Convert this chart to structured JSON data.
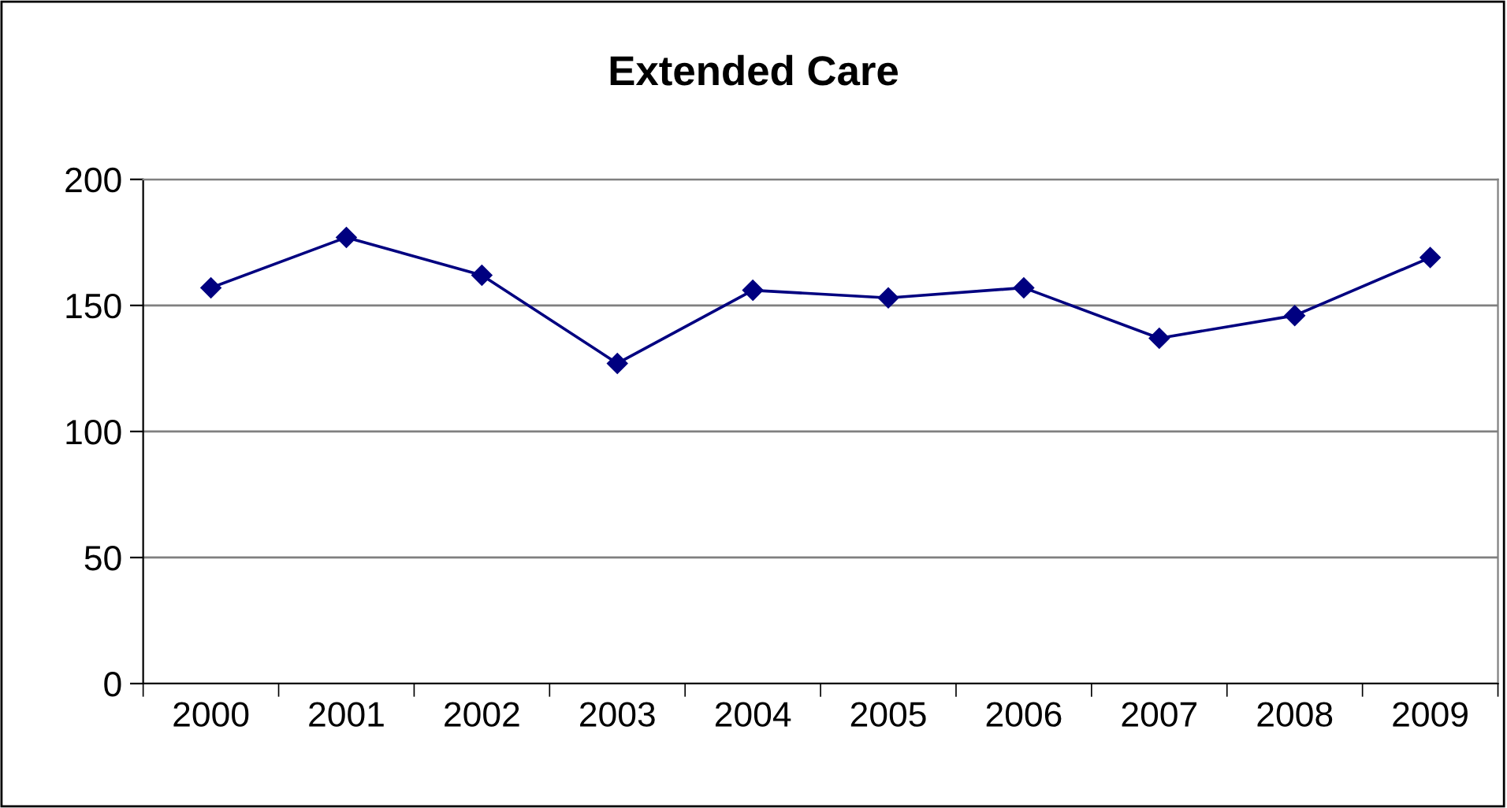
{
  "chart_data": {
    "type": "line",
    "title": "Extended Care",
    "categories": [
      "2000",
      "2001",
      "2002",
      "2003",
      "2004",
      "2005",
      "2006",
      "2007",
      "2008",
      "2009"
    ],
    "series": [
      {
        "color": "#000080",
        "values": [
          157,
          177,
          162,
          127,
          156,
          153,
          157,
          137,
          146,
          169
        ]
      }
    ],
    "ylim": [
      0,
      200
    ],
    "yticks": [
      0,
      50,
      100,
      150,
      200
    ],
    "grid": "y",
    "marker": "diamond",
    "line_style": "solid",
    "legend": false
  }
}
